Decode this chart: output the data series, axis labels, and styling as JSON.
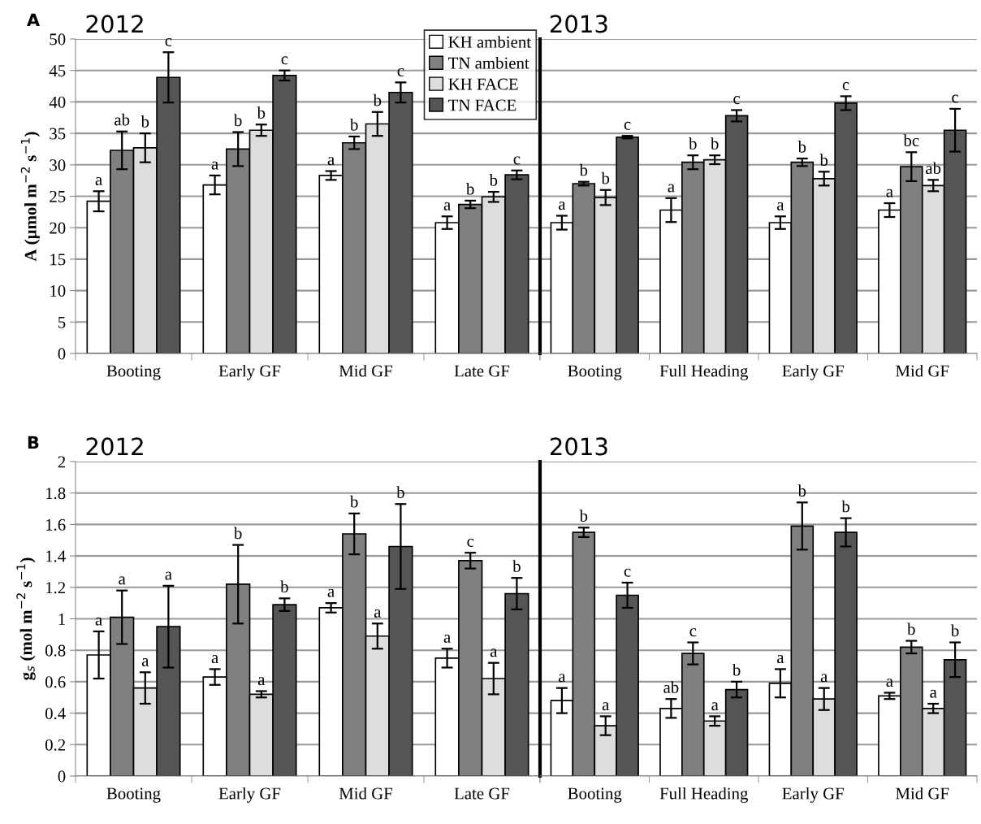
{
  "chart_data": [
    {
      "type": "bar",
      "title": "2012",
      "ylabel": "A (µmol m$^{−2}$ s$^{−1}$)",
      "annotations": [
        "A"
      ],
      "legend": "top right",
      "grid": "y",
      "ylim": [
        0,
        50
      ],
      "yticks": [
        0,
        5,
        10,
        15,
        20,
        25,
        30,
        35,
        40,
        45,
        50
      ],
      "categories": [
        "Booting",
        "Early GF",
        "Mid GF",
        "Late GF"
      ],
      "series": [
        {
          "name": "KH ambient",
          "color": "#ffffff",
          "values": [
            24.2,
            26.8,
            28.3,
            20.8
          ],
          "errors": [
            1.6,
            1.5,
            0.7,
            1.0
          ],
          "value_labels": [
            "a",
            "a",
            "a",
            "a"
          ]
        },
        {
          "name": "TN ambient",
          "color": "#808080",
          "values": [
            32.3,
            32.5,
            33.5,
            23.7
          ],
          "errors": [
            3.0,
            2.7,
            1.0,
            0.6
          ],
          "value_labels": [
            "ab",
            "b",
            "b",
            "b"
          ]
        },
        {
          "name": "KH FACE",
          "color": "#dddddd",
          "values": [
            32.7,
            35.5,
            36.5,
            24.9
          ],
          "errors": [
            2.3,
            0.9,
            1.9,
            0.8
          ],
          "value_labels": [
            "b",
            "b",
            "b",
            "b"
          ]
        },
        {
          "name": "TN FACE",
          "color": "#555555",
          "values": [
            43.9,
            44.2,
            41.5,
            28.4
          ],
          "errors": [
            4.0,
            0.8,
            1.6,
            0.7
          ],
          "value_labels": [
            "c",
            "c",
            "c",
            "c"
          ]
        }
      ]
    },
    {
      "type": "bar",
      "title": "2013",
      "grid": "y",
      "ylim": [
        0,
        50
      ],
      "yticks": [
        0,
        5,
        10,
        15,
        20,
        25,
        30,
        35,
        40,
        45,
        50
      ],
      "tick_labels": "x",
      "categories": [
        "Booting",
        "Full Heading",
        "Early GF",
        "Mid GF"
      ],
      "series": [
        {
          "color": "#ffffff",
          "values": [
            20.8,
            22.8,
            20.8,
            22.8
          ],
          "errors": [
            1.1,
            1.9,
            1.0,
            1.1
          ],
          "value_labels": [
            "a",
            "a",
            "a",
            "a"
          ]
        },
        {
          "color": "#808080",
          "values": [
            27.0,
            30.4,
            30.4,
            29.7
          ],
          "errors": [
            0.3,
            1.1,
            0.6,
            2.3
          ],
          "value_labels": [
            "b",
            "b",
            "b",
            "bc"
          ]
        },
        {
          "color": "#dddddd",
          "values": [
            24.8,
            30.8,
            27.8,
            26.7
          ],
          "errors": [
            1.2,
            0.7,
            1.1,
            0.9
          ],
          "value_labels": [
            "b",
            "b",
            "b",
            "ab"
          ]
        },
        {
          "color": "#555555",
          "values": [
            34.4,
            37.8,
            39.8,
            35.5
          ],
          "errors": [
            0.2,
            0.9,
            1.1,
            3.4
          ],
          "value_labels": [
            "c",
            "c",
            "c",
            "c"
          ]
        }
      ]
    },
    {
      "type": "bar",
      "title": "2012",
      "ylabel": "g$_{s}$ (mol m$^{−2}$ s$^{−1}$)",
      "annotations": [
        "B"
      ],
      "grid": "y",
      "ylim": [
        0,
        2
      ],
      "yticks": [
        0,
        0.2,
        0.4,
        0.6,
        0.8,
        1,
        1.2,
        1.4,
        1.6,
        1.8,
        2
      ],
      "categories": [
        "Booting",
        "Early GF",
        "Mid GF",
        "Late GF"
      ],
      "series": [
        {
          "color": "#ffffff",
          "values": [
            0.77,
            0.63,
            1.07,
            0.75
          ],
          "errors": [
            0.15,
            0.05,
            0.03,
            0.06
          ],
          "value_labels": [
            "a",
            "a",
            "a",
            "a"
          ]
        },
        {
          "color": "#808080",
          "values": [
            1.01,
            1.22,
            1.54,
            1.37
          ],
          "errors": [
            0.17,
            0.25,
            0.13,
            0.05
          ],
          "value_labels": [
            "a",
            "b",
            "b",
            "c"
          ]
        },
        {
          "color": "#dddddd",
          "values": [
            0.56,
            0.52,
            0.89,
            0.62
          ],
          "errors": [
            0.1,
            0.02,
            0.08,
            0.1
          ],
          "value_labels": [
            "a",
            "a",
            "a",
            "a"
          ]
        },
        {
          "color": "#555555",
          "values": [
            0.95,
            1.09,
            1.46,
            1.16
          ],
          "errors": [
            0.26,
            0.04,
            0.27,
            0.1
          ],
          "value_labels": [
            "a",
            "b",
            "b",
            "b"
          ]
        }
      ]
    },
    {
      "type": "bar",
      "title": "2013",
      "grid": "y",
      "ylim": [
        0,
        2
      ],
      "yticks": [
        0,
        0.2,
        0.4,
        0.6,
        0.8,
        1,
        1.2,
        1.4,
        1.6,
        1.8,
        2
      ],
      "tick_labels": "x",
      "categories": [
        "Booting",
        "Full Heading",
        "Early GF",
        "Mid GF"
      ],
      "series": [
        {
          "color": "#ffffff",
          "values": [
            0.48,
            0.43,
            0.59,
            0.51
          ],
          "errors": [
            0.08,
            0.06,
            0.09,
            0.02
          ],
          "value_labels": [
            "a",
            "ab",
            "a",
            "a"
          ]
        },
        {
          "color": "#808080",
          "values": [
            1.55,
            0.78,
            1.59,
            0.82
          ],
          "errors": [
            0.03,
            0.07,
            0.15,
            0.04
          ],
          "value_labels": [
            "b",
            "c",
            "b",
            "b"
          ]
        },
        {
          "color": "#dddddd",
          "values": [
            0.32,
            0.35,
            0.49,
            0.43
          ],
          "errors": [
            0.06,
            0.03,
            0.07,
            0.03
          ],
          "value_labels": [
            "a",
            "a",
            "a",
            "a"
          ]
        },
        {
          "color": "#555555",
          "values": [
            1.15,
            0.55,
            1.55,
            0.74
          ],
          "errors": [
            0.08,
            0.05,
            0.09,
            0.11
          ],
          "value_labels": [
            "c",
            "b",
            "b",
            "b"
          ]
        }
      ]
    }
  ]
}
